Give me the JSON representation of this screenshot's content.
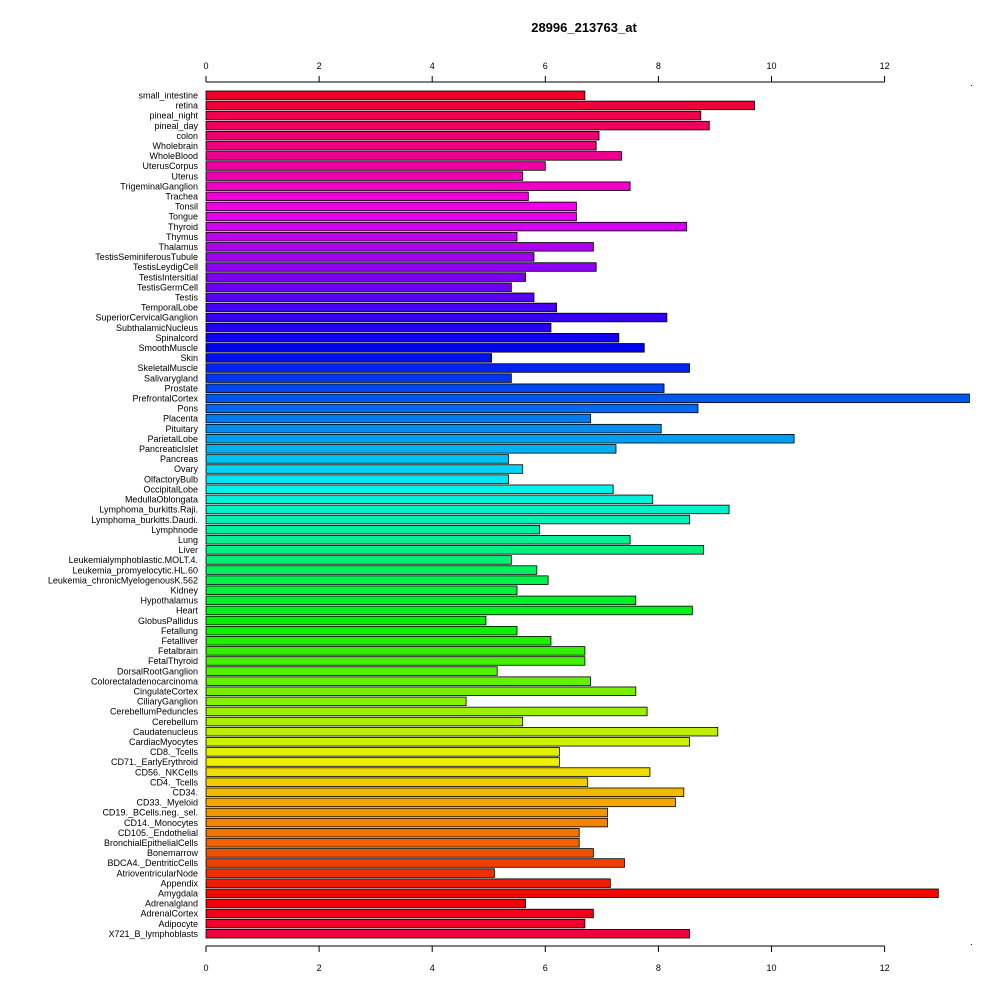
{
  "chart_data": {
    "type": "bar",
    "orientation": "horizontal",
    "title": "28996_213763_at",
    "xlabel": "",
    "ylabel": "",
    "xlim": [
      0,
      13.5
    ],
    "xticks": [
      0,
      2,
      4,
      6,
      8,
      10,
      12
    ],
    "axes": "top and bottom",
    "grid": false,
    "legend": "none",
    "bar_colors": "rainbow palette from red (top) through magenta, blue, cyan, green, yellow, orange back to red (bottom)",
    "categories": [
      "small_intestine",
      "retina",
      "pineal_night",
      "pineal_day",
      "colon",
      "Wholebrain",
      "WholeBlood",
      "UterusCorpus",
      "Uterus",
      "TrigeminalGanglion",
      "Trachea",
      "Tonsil",
      "Tongue",
      "Thyroid",
      "Thymus",
      "Thalamus",
      "TestisSeminiferousTubule",
      "TestisLeydigCell",
      "TestisIntersitial",
      "TestisGermCell",
      "Testis",
      "TemporalLobe",
      "SuperiorCervicalGanglion",
      "SubthalamicNucleus",
      "Spinalcord",
      "SmoothMuscle",
      "Skin",
      "SkeletalMuscle",
      "Salivarygland",
      "Prostate",
      "PrefrontalCortex",
      "Pons",
      "Placenta",
      "Pituitary",
      "ParietalLobe",
      "PancreaticIslet",
      "Pancreas",
      "Ovary",
      "OlfactoryBulb",
      "OccipitalLobe",
      "MedullaOblongata",
      "Lymphoma_burkitts.Raji.",
      "Lymphoma_burkitts.Daudi.",
      "Lymphnode",
      "Lung",
      "Liver",
      "Leukemialymphoblastic.MOLT.4.",
      "Leukemia_promyelocytic.HL.60",
      "Leukemia_chronicMyelogenousK.562",
      "Kidney",
      "Hypothalamus",
      "Heart",
      "GlobusPallidus",
      "Fetallung",
      "Fetalliver",
      "Fetalbrain",
      "FetalThyroid",
      "DorsalRootGanglion",
      "Colorectaladenocarcinoma",
      "CingulateCortex",
      "CiliaryGanglion",
      "CerebellumPeduncles",
      "Cerebellum",
      "Caudatenucleus",
      "CardiacMyocytes",
      "CD8._Tcells",
      "CD71._EarlyErythroid",
      "CD56._NKCells",
      "CD4._Tcells",
      "CD34.",
      "CD33._Myeloid",
      "CD19._BCells.neg._sel.",
      "CD14._Monocytes",
      "CD105._Endothelial",
      "BronchialEpithelialCells",
      "Bonemarrow",
      "BDCA4._DentriticCells",
      "AtrioventricularNode",
      "Appendix",
      "Amygdala",
      "Adrenalgland",
      "AdrenalCortex",
      "Adipocyte",
      "X721_B_lymphoblasts"
    ],
    "values": [
      6.7,
      9.7,
      8.75,
      8.9,
      6.95,
      6.9,
      7.35,
      6.0,
      5.6,
      7.5,
      5.7,
      6.55,
      6.55,
      8.5,
      5.5,
      6.85,
      5.8,
      6.9,
      5.65,
      5.4,
      5.8,
      6.2,
      8.15,
      6.1,
      7.3,
      7.75,
      5.05,
      8.55,
      5.4,
      8.1,
      13.5,
      8.7,
      6.8,
      8.05,
      10.4,
      7.25,
      5.35,
      5.6,
      5.35,
      7.2,
      7.9,
      9.25,
      8.55,
      5.9,
      7.5,
      8.8,
      5.4,
      5.85,
      6.05,
      5.5,
      7.6,
      8.6,
      4.95,
      5.5,
      6.1,
      6.7,
      6.7,
      5.15,
      6.8,
      7.6,
      4.6,
      7.8,
      5.6,
      9.05,
      8.55,
      6.25,
      6.25,
      7.85,
      6.75,
      8.45,
      8.3,
      7.1,
      7.1,
      6.6,
      6.6,
      6.85,
      7.4,
      5.1,
      7.15,
      12.95,
      5.65,
      6.85,
      6.7,
      8.55
    ]
  }
}
